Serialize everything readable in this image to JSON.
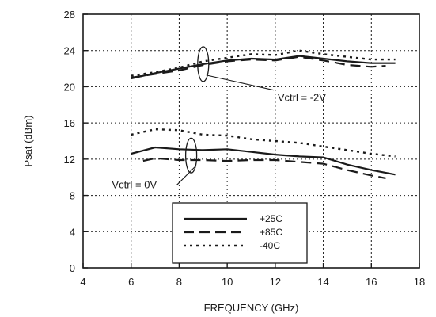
{
  "chart_data": {
    "type": "line",
    "xlabel": "FREQUENCY (GHz)",
    "ylabel": "Psat (dBm)",
    "xlim": [
      4,
      18
    ],
    "ylim": [
      0,
      28
    ],
    "xticks": [
      4,
      6,
      8,
      10,
      12,
      14,
      16,
      18
    ],
    "yticks": [
      0,
      4,
      8,
      12,
      16,
      20,
      24,
      28
    ],
    "grid": true,
    "legend_position": "bottom-center",
    "groups": [
      {
        "label": "Vctrl = -2V",
        "series": [
          {
            "name": "+25C",
            "style": "solid",
            "x": [
              6,
              7,
              8,
              9,
              10,
              11,
              12,
              13,
              14,
              15,
              16,
              17
            ],
            "y": [
              20.9,
              21.5,
              22.0,
              22.5,
              22.9,
              23.1,
              23.0,
              23.4,
              23.1,
              22.8,
              22.6,
              22.6
            ]
          },
          {
            "name": "+85C",
            "style": "dashed",
            "x": [
              6,
              7,
              8,
              9,
              10,
              11,
              12,
              13,
              14,
              15,
              16,
              16.6
            ],
            "y": [
              21.0,
              21.4,
              21.8,
              22.4,
              22.8,
              23.0,
              22.9,
              23.3,
              22.9,
              22.4,
              22.2,
              22.3
            ]
          },
          {
            "name": "-40C",
            "style": "dotted",
            "x": [
              6,
              7,
              8,
              9,
              10,
              11,
              12,
              13,
              14,
              15,
              16,
              17
            ],
            "y": [
              21.2,
              21.6,
              22.1,
              22.8,
              23.2,
              23.6,
              23.5,
              24.0,
              23.6,
              23.3,
              23.0,
              23.0
            ]
          }
        ]
      },
      {
        "label": "Vctrl = 0V",
        "series": [
          {
            "name": "+25C",
            "style": "solid",
            "x": [
              6,
              7,
              8,
              9,
              10,
              11,
              12,
              13,
              14,
              15,
              16,
              17
            ],
            "y": [
              12.6,
              13.3,
              13.1,
              13.0,
              13.1,
              12.8,
              12.5,
              12.3,
              12.2,
              11.4,
              10.8,
              10.3
            ]
          },
          {
            "name": "+85C",
            "style": "dashed",
            "x": [
              6.5,
              7,
              8,
              9,
              10,
              11,
              12,
              13,
              14,
              15,
              16,
              16.6
            ],
            "y": [
              11.8,
              12.1,
              11.9,
              11.9,
              11.8,
              11.9,
              11.9,
              11.7,
              11.5,
              10.8,
              10.2,
              9.9
            ]
          },
          {
            "name": "-40C",
            "style": "dotted",
            "x": [
              6,
              7,
              8,
              9,
              10,
              11,
              12,
              13,
              14,
              15,
              16,
              17
            ],
            "y": [
              14.7,
              15.3,
              15.2,
              14.7,
              14.6,
              14.2,
              14.0,
              13.8,
              13.4,
              13.0,
              12.6,
              12.3
            ]
          }
        ]
      }
    ],
    "legend": [
      {
        "name": "+25C",
        "style": "solid"
      },
      {
        "name": "+85C",
        "style": "dashed"
      },
      {
        "name": "-40C",
        "style": "dotted"
      }
    ],
    "annotations": [
      {
        "text": "Vctrl = -2V",
        "ellipse_at": [
          9.0,
          22.5
        ],
        "text_at": [
          12.1,
          18.4
        ]
      },
      {
        "text": "Vctrl = 0V",
        "ellipse_at": [
          8.5,
          12.4
        ],
        "text_at": [
          5.2,
          8.8
        ]
      }
    ]
  }
}
